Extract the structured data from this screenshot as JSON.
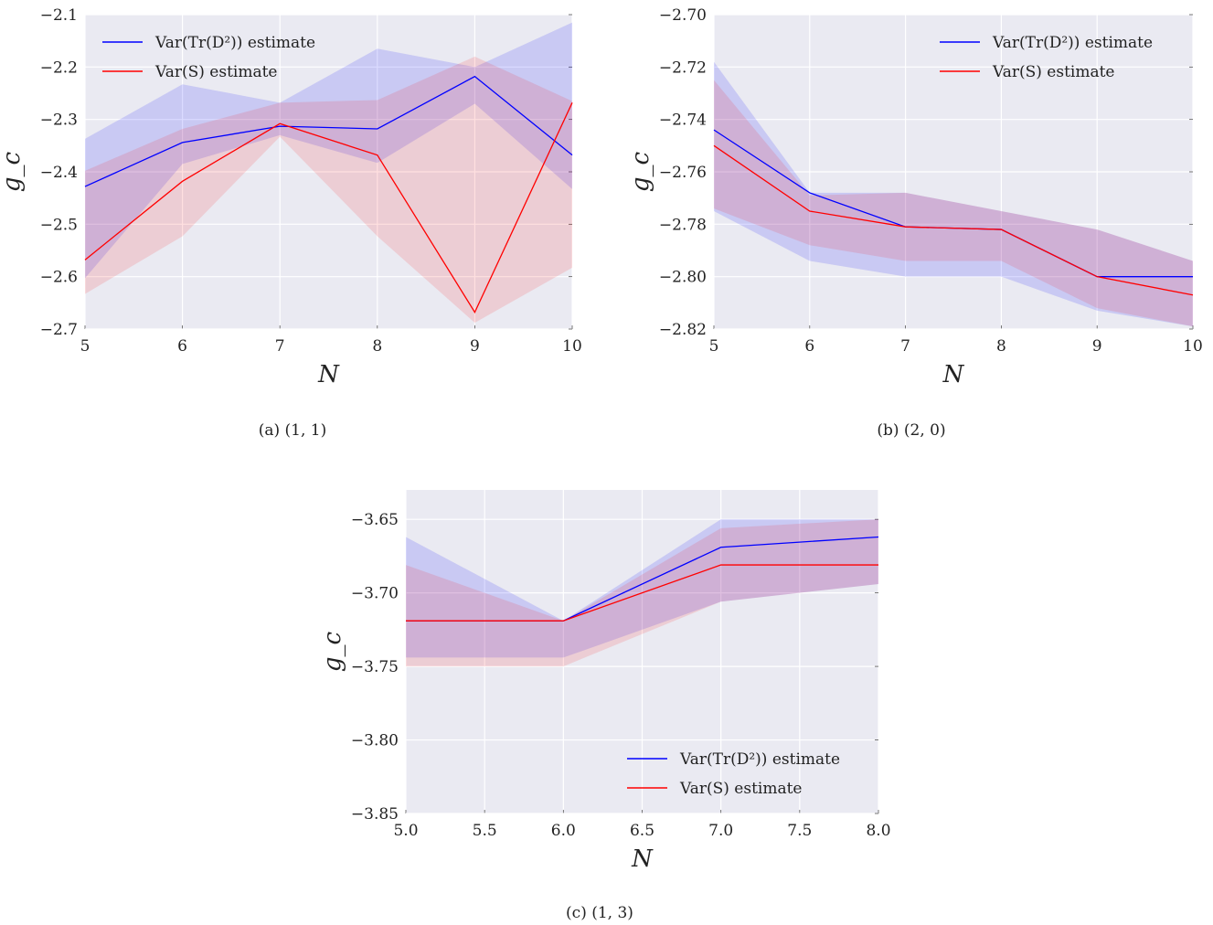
{
  "chart_data": [
    {
      "type": "line",
      "caption": "(a) (1, 1)",
      "xlabel": "N",
      "ylabel": "g_c",
      "xlim": [
        5,
        10
      ],
      "ylim": [
        -2.7,
        -2.1
      ],
      "xticks": [
        "5",
        "6",
        "7",
        "8",
        "9",
        "10"
      ],
      "yticks": [
        "−2.1",
        "−2.2",
        "−2.3",
        "−2.4",
        "−2.5",
        "−2.6",
        "−2.7"
      ],
      "grid": true,
      "legend_position": "top-left",
      "x": [
        5,
        6,
        7,
        8,
        9,
        10
      ],
      "series": [
        {
          "name": "Var(Tr(D²)) estimate",
          "color": "#0000ff",
          "values": [
            -2.428,
            -2.344,
            -2.313,
            -2.318,
            -2.218,
            -2.368
          ],
          "upper": [
            -2.337,
            -2.233,
            -2.268,
            -2.165,
            -2.2,
            -2.115
          ],
          "lower": [
            -2.603,
            -2.385,
            -2.33,
            -2.383,
            -2.27,
            -2.433
          ]
        },
        {
          "name": "Var(S) estimate",
          "color": "#ff0000",
          "values": [
            -2.568,
            -2.418,
            -2.308,
            -2.368,
            -2.668,
            -2.268
          ],
          "upper": [
            -2.398,
            -2.318,
            -2.268,
            -2.263,
            -2.18,
            -2.265
          ],
          "lower": [
            -2.633,
            -2.523,
            -2.333,
            -2.523,
            -2.688,
            -2.583
          ]
        }
      ]
    },
    {
      "type": "line",
      "caption": "(b) (2, 0)",
      "xlabel": "N",
      "ylabel": "g_c",
      "xlim": [
        5,
        10
      ],
      "ylim": [
        -2.82,
        -2.7
      ],
      "xticks": [
        "5",
        "6",
        "7",
        "8",
        "9",
        "10"
      ],
      "yticks": [
        "−2.70",
        "−2.72",
        "−2.74",
        "−2.76",
        "−2.78",
        "−2.80",
        "−2.82"
      ],
      "grid": true,
      "legend_position": "top-right",
      "x": [
        5,
        6,
        7,
        8,
        9,
        10
      ],
      "series": [
        {
          "name": "Var(Tr(D²)) estimate",
          "color": "#0000ff",
          "values": [
            -2.744,
            -2.768,
            -2.781,
            -2.782,
            -2.8,
            -2.8
          ],
          "upper": [
            -2.718,
            -2.768,
            -2.768,
            -2.775,
            -2.782,
            -2.794
          ],
          "lower": [
            -2.775,
            -2.794,
            -2.8,
            -2.8,
            -2.813,
            -2.819
          ]
        },
        {
          "name": "Var(S) estimate",
          "color": "#ff0000",
          "values": [
            -2.75,
            -2.775,
            -2.781,
            -2.782,
            -2.8,
            -2.807
          ],
          "upper": [
            -2.725,
            -2.769,
            -2.768,
            -2.775,
            -2.782,
            -2.794
          ],
          "lower": [
            -2.774,
            -2.788,
            -2.794,
            -2.794,
            -2.812,
            -2.819
          ]
        }
      ]
    },
    {
      "type": "line",
      "caption": "(c) (1, 3)",
      "xlabel": "N",
      "ylabel": "g_c",
      "xlim": [
        5,
        8
      ],
      "ylim": [
        -3.85,
        -3.63
      ],
      "xticks": [
        "5.0",
        "5.5",
        "6.0",
        "6.5",
        "7.0",
        "7.5",
        "8.0"
      ],
      "yticks": [
        "−3.65",
        "−3.70",
        "−3.75",
        "−3.80",
        "−3.85"
      ],
      "grid": true,
      "legend_position": "bottom-right",
      "x": [
        5,
        6,
        7,
        8
      ],
      "series": [
        {
          "name": "Var(Tr(D²)) estimate",
          "color": "#0000ff",
          "values": [
            -3.719,
            -3.719,
            -3.669,
            -3.662
          ],
          "upper": [
            -3.662,
            -3.719,
            -3.65,
            -3.65
          ],
          "lower": [
            -3.744,
            -3.744,
            -3.706,
            -3.694
          ]
        },
        {
          "name": "Var(S) estimate",
          "color": "#ff0000",
          "values": [
            -3.719,
            -3.719,
            -3.681,
            -3.681
          ],
          "upper": [
            -3.681,
            -3.719,
            -3.656,
            -3.65
          ],
          "lower": [
            -3.75,
            -3.75,
            -3.706,
            -3.694
          ]
        }
      ]
    }
  ]
}
